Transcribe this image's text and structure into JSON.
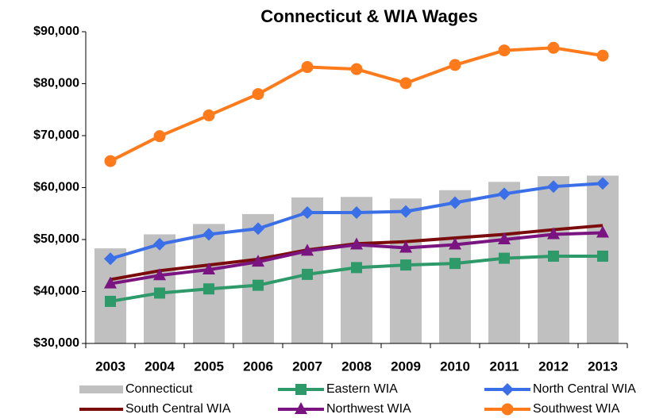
{
  "chart_data": {
    "type": "bar",
    "title": "Connecticut & WIA Wages",
    "categories": [
      "2003",
      "2004",
      "2005",
      "2006",
      "2007",
      "2008",
      "2009",
      "2010",
      "2011",
      "2012",
      "2013"
    ],
    "series": [
      {
        "name": "Connecticut",
        "type": "bar",
        "color": "#c0c0c0",
        "values": [
          48300,
          51000,
          53000,
          54900,
          58100,
          58200,
          57900,
          59500,
          61100,
          62200,
          62300
        ]
      },
      {
        "name": "Eastern WIA",
        "type": "line",
        "marker": "square",
        "color": "#2e9a6a",
        "values": [
          38100,
          39700,
          40500,
          41200,
          43300,
          44600,
          45100,
          45400,
          46400,
          46800,
          46800
        ]
      },
      {
        "name": "North Central WIA",
        "type": "line",
        "marker": "diamond",
        "color": "#3b6fe8",
        "values": [
          46300,
          49100,
          51000,
          52100,
          55200,
          55200,
          55400,
          57100,
          58800,
          60200,
          60800
        ]
      },
      {
        "name": "South Central WIA",
        "type": "line",
        "marker": "none",
        "color": "#7b0c0c",
        "values": [
          42300,
          44000,
          45100,
          46200,
          48000,
          49200,
          49600,
          50300,
          51000,
          51900,
          52700
        ]
      },
      {
        "name": "Northwest WIA",
        "type": "line",
        "marker": "triangle",
        "color": "#7a1480",
        "values": [
          41500,
          43100,
          44200,
          45700,
          47800,
          49000,
          48400,
          49000,
          50000,
          51000,
          51300
        ]
      },
      {
        "name": "Southwest WIA",
        "type": "line",
        "marker": "circle",
        "color": "#ff7a1a",
        "values": [
          65100,
          69900,
          73900,
          78000,
          83200,
          82800,
          80100,
          83600,
          86400,
          86900,
          85400
        ]
      }
    ],
    "ylim": [
      30000,
      90000
    ],
    "yticks": [
      {
        "value": 30000,
        "label": "$30,000"
      },
      {
        "value": 40000,
        "label": "$40,000"
      },
      {
        "value": 50000,
        "label": "$50,000"
      },
      {
        "value": 60000,
        "label": "$60,000"
      },
      {
        "value": 70000,
        "label": "$70,000"
      },
      {
        "value": 80000,
        "label": "$80,000"
      },
      {
        "value": 90000,
        "label": "$90,000"
      }
    ],
    "grid": false,
    "legend": "bottom"
  }
}
